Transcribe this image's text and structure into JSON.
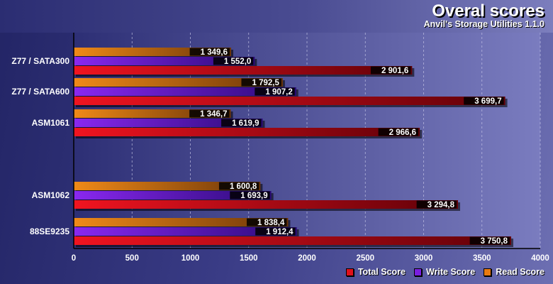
{
  "header": {
    "title": "Overal scores",
    "subtitle": "Anvil's Storage Utilities 1.1.0"
  },
  "chart_data": {
    "type": "bar",
    "orientation": "horizontal",
    "categories": [
      "Z77 / SATA300",
      "Z77 / SATA600",
      "ASM1061",
      "",
      "ASM1062",
      "88SE9235"
    ],
    "series": [
      {
        "name": "Read Score",
        "color": "#e87a10",
        "values": [
          1349.6,
          1792.5,
          1346.7,
          null,
          1600.8,
          1838.4
        ]
      },
      {
        "name": "Write Score",
        "color": "#7a1ee0",
        "values": [
          1552.0,
          1907.2,
          1619.9,
          null,
          1693.9,
          1912.4
        ]
      },
      {
        "name": "Total Score",
        "color": "#e0101a",
        "values": [
          2901.6,
          3699.7,
          2966.6,
          null,
          3294.8,
          3750.8
        ]
      }
    ],
    "data_labels": [
      [
        "1 349,6",
        "1 792,5",
        "1 346,7",
        "",
        "1 600,8",
        "1 838,4"
      ],
      [
        "1 552,0",
        "1 907,2",
        "1 619,9",
        "",
        "1 693,9",
        "1 912,4"
      ],
      [
        "2 901,6",
        "3 699,7",
        "2 966,6",
        "",
        "3 294,8",
        "3 750,8"
      ]
    ],
    "xlim": [
      0,
      4000
    ],
    "xticks": [
      "0",
      "500",
      "1000",
      "1500",
      "2000",
      "2500",
      "3000",
      "3500",
      "4000"
    ],
    "grid": true,
    "legend": {
      "position": "bottom-right",
      "order": [
        "Total Score",
        "Write Score",
        "Read Score"
      ]
    }
  }
}
